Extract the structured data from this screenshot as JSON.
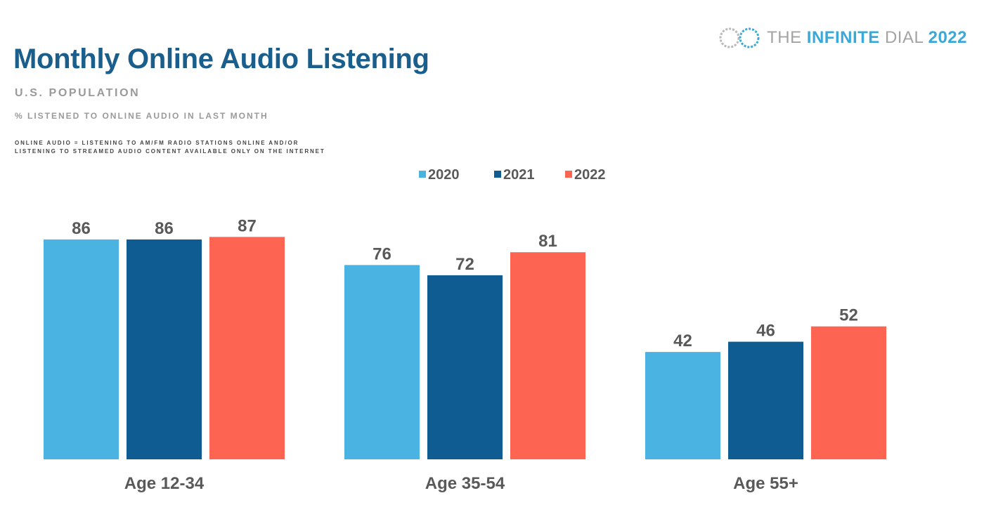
{
  "header": {
    "title": "Monthly Online Audio Listening",
    "subtitle": "U.S. POPULATION",
    "measure": "% LISTENED TO ONLINE AUDIO IN LAST MONTH",
    "definition_line1": "ONLINE AUDIO = LISTENING TO AM/FM RADIO STATIONS ONLINE AND/OR",
    "definition_line2": "LISTENING TO STREAMED AUDIO CONTENT AVAILABLE ONLY ON THE INTERNET"
  },
  "brand": {
    "the": "THE",
    "infinite": "INFINITE",
    "dial": "DIAL",
    "year": "2022",
    "icon": "infinity-loop-icon"
  },
  "colors": {
    "title": "#1a5e8c",
    "series_2020": "#4ab3e2",
    "series_2021": "#0f5c92",
    "series_2022": "#fd6452",
    "label": "#595959"
  },
  "chart_data": {
    "type": "bar",
    "title": "Monthly Online Audio Listening",
    "xlabel": "",
    "ylabel": "",
    "ylim": [
      0,
      100
    ],
    "grid": false,
    "legend": "top-center",
    "categories": [
      "Age 12-34",
      "Age 35-54",
      "Age 55+"
    ],
    "series": [
      {
        "name": "2020",
        "color": "#4ab3e2",
        "values": [
          86,
          76,
          42
        ]
      },
      {
        "name": "2021",
        "color": "#0f5c92",
        "values": [
          86,
          72,
          46
        ]
      },
      {
        "name": "2022",
        "color": "#fd6452",
        "values": [
          87,
          81,
          52
        ]
      }
    ]
  }
}
